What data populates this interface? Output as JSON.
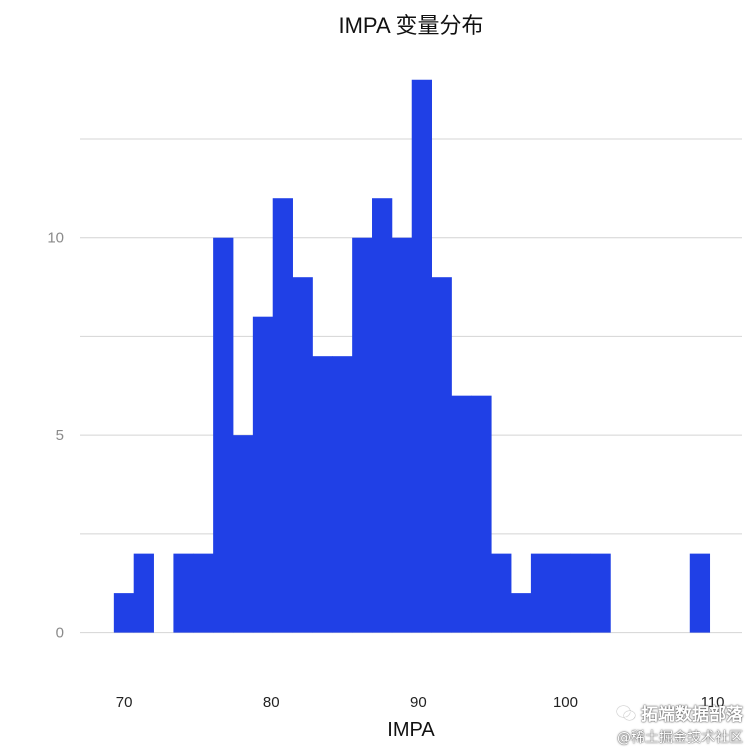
{
  "chart_data": {
    "type": "bar",
    "title": "IMPA 变量分布",
    "xlabel": "IMPA",
    "ylabel": "",
    "xlim": [
      67,
      112
    ],
    "ylim": [
      -1.2,
      14.5
    ],
    "x_ticks": [
      70,
      80,
      90,
      100,
      110
    ],
    "y_ticks": [
      0,
      5,
      10
    ],
    "y_gridlines": [
      0,
      2.5,
      5,
      7.5,
      10,
      12.5
    ],
    "grid": true,
    "bar_color": "#2040e6",
    "bins": [
      {
        "x0": 69.3,
        "x1": 70.65,
        "count": 1
      },
      {
        "x0": 70.65,
        "x1": 72.0,
        "count": 2
      },
      {
        "x0": 72.0,
        "x1": 73.35,
        "count": 0
      },
      {
        "x0": 73.35,
        "x1": 74.7,
        "count": 2
      },
      {
        "x0": 74.7,
        "x1": 76.05,
        "count": 2
      },
      {
        "x0": 76.05,
        "x1": 77.4,
        "count": 10
      },
      {
        "x0": 77.4,
        "x1": 78.75,
        "count": 5
      },
      {
        "x0": 78.75,
        "x1": 80.1,
        "count": 8
      },
      {
        "x0": 80.1,
        "x1": 81.45,
        "count": 11
      },
      {
        "x0": 81.45,
        "x1": 82.8,
        "count": 9
      },
      {
        "x0": 82.8,
        "x1": 84.15,
        "count": 7
      },
      {
        "x0": 84.15,
        "x1": 85.5,
        "count": 7
      },
      {
        "x0": 85.5,
        "x1": 86.85,
        "count": 10
      },
      {
        "x0": 86.85,
        "x1": 88.2,
        "count": 11
      },
      {
        "x0": 88.2,
        "x1": 89.55,
        "count": 10
      },
      {
        "x0": 89.55,
        "x1": 90.9,
        "count": 14
      },
      {
        "x0": 90.9,
        "x1": 92.25,
        "count": 9
      },
      {
        "x0": 92.25,
        "x1": 93.6,
        "count": 6
      },
      {
        "x0": 93.6,
        "x1": 94.95,
        "count": 6
      },
      {
        "x0": 94.95,
        "x1": 96.3,
        "count": 2
      },
      {
        "x0": 96.3,
        "x1": 97.65,
        "count": 1
      },
      {
        "x0": 97.65,
        "x1": 99.0,
        "count": 2
      },
      {
        "x0": 99.0,
        "x1": 100.35,
        "count": 2
      },
      {
        "x0": 100.35,
        "x1": 101.7,
        "count": 2
      },
      {
        "x0": 101.7,
        "x1": 103.05,
        "count": 2
      },
      {
        "x0": 103.05,
        "x1": 104.4,
        "count": 0
      },
      {
        "x0": 104.4,
        "x1": 105.75,
        "count": 0
      },
      {
        "x0": 105.75,
        "x1": 107.1,
        "count": 0
      },
      {
        "x0": 107.1,
        "x1": 108.45,
        "count": 0
      },
      {
        "x0": 108.45,
        "x1": 109.8,
        "count": 2
      }
    ]
  },
  "watermark": {
    "line1": "拓端数据部落",
    "line2": "@稀土掘金技术社区",
    "icon": "wechat-icon"
  }
}
